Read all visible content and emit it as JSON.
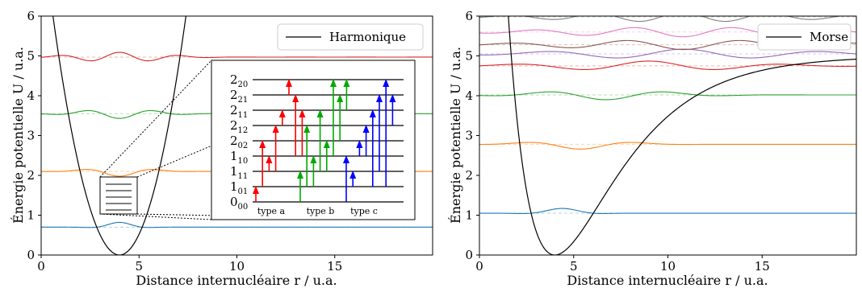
{
  "chart_data": [
    {
      "type": "line",
      "title": "",
      "xlabel": "Distance internucléaire r / u.a.",
      "ylabel": "Énergie potentielle U / u.a.",
      "xlim": [
        0,
        20
      ],
      "ylim": [
        0,
        6
      ],
      "xticks": [
        0,
        5,
        10,
        15
      ],
      "yticks": [
        0,
        1,
        2,
        3,
        4,
        5,
        6
      ],
      "grid": false,
      "legend_position": "top-right",
      "potential": {
        "name": "Harmonique",
        "kind": "harmonic",
        "r0": 4,
        "k": 0.52,
        "color": "#000000"
      },
      "levels": [
        {
          "energy": 0.7,
          "color": "#1f77b4",
          "nodes": 0
        },
        {
          "energy": 2.1,
          "color": "#ff7f0e",
          "nodes": 1
        },
        {
          "energy": 3.55,
          "color": "#2ca02c",
          "nodes": 2
        },
        {
          "energy": 4.97,
          "color": "#d62728",
          "nodes": 3
        }
      ],
      "inset": {
        "levels": [
          "2_20",
          "2_21",
          "2_11",
          "2_12",
          "2_02",
          "1_10",
          "1_11",
          "1_01",
          "0_00"
        ],
        "columns": [
          "type a",
          "type b",
          "type c"
        ],
        "column_colors": [
          "#ff0000",
          "#00aa00",
          "#0000ff"
        ],
        "transitions": [
          {
            "type": "a",
            "from": "1_01",
            "to": "0_00"
          },
          {
            "type": "a",
            "from": "2_02",
            "to": "1_01"
          },
          {
            "type": "a",
            "from": "1_10",
            "to": "1_11"
          },
          {
            "type": "a",
            "from": "2_12",
            "to": "1_11"
          },
          {
            "type": "a",
            "from": "2_11",
            "to": "2_12"
          },
          {
            "type": "a",
            "from": "2_20",
            "to": "2_21"
          },
          {
            "type": "a",
            "from": "2_21",
            "to": "1_10"
          },
          {
            "type": "a",
            "from": "2_11",
            "to": "1_10"
          },
          {
            "type": "b",
            "from": "1_11",
            "to": "0_00"
          },
          {
            "type": "b",
            "from": "2_12",
            "to": "1_01"
          },
          {
            "type": "b",
            "from": "1_10",
            "to": "1_01"
          },
          {
            "type": "b",
            "from": "2_11",
            "to": "1_11"
          },
          {
            "type": "b",
            "from": "2_02",
            "to": "1_11"
          },
          {
            "type": "b",
            "from": "2_20",
            "to": "1_10"
          },
          {
            "type": "b",
            "from": "2_21",
            "to": "2_02"
          },
          {
            "type": "b",
            "from": "2_20",
            "to": "2_11"
          },
          {
            "type": "c",
            "from": "1_10",
            "to": "0_00"
          },
          {
            "type": "c",
            "from": "1_11",
            "to": "1_01"
          },
          {
            "type": "c",
            "from": "2_02",
            "to": "1_10"
          },
          {
            "type": "c",
            "from": "2_12",
            "to": "1_10"
          },
          {
            "type": "c",
            "from": "2_11",
            "to": "1_01"
          },
          {
            "type": "c",
            "from": "2_21",
            "to": "1_11"
          },
          {
            "type": "c",
            "from": "2_20",
            "to": "1_01"
          },
          {
            "type": "c",
            "from": "2_21",
            "to": "2_12"
          }
        ]
      }
    },
    {
      "type": "line",
      "title": "",
      "xlabel": "Distance internucléaire r / u.a.",
      "ylabel": "Énergie potentielle U / u.a.",
      "xlim": [
        0,
        20
      ],
      "ylim": [
        0,
        6
      ],
      "xticks": [
        0,
        5,
        10,
        15
      ],
      "yticks": [
        0,
        1,
        2,
        3,
        4,
        5,
        6
      ],
      "grid": false,
      "legend_position": "top-right",
      "potential": {
        "name": "Morse",
        "kind": "morse",
        "r0": 4,
        "D": 5,
        "a": 0.3,
        "color": "#000000"
      },
      "levels": [
        {
          "energy": 1.05,
          "color": "#1f77b4",
          "nodes": 0
        },
        {
          "energy": 2.78,
          "color": "#ff7f0e",
          "nodes": 1
        },
        {
          "energy": 4.02,
          "color": "#2ca02c",
          "nodes": 2
        },
        {
          "energy": 4.75,
          "color": "#d62728",
          "nodes": 3
        },
        {
          "energy": 5.05,
          "color": "#9467bd",
          "nodes": 4
        },
        {
          "energy": 5.28,
          "color": "#8c564b",
          "nodes": 5
        },
        {
          "energy": 5.6,
          "color": "#e377c2",
          "nodes": 6
        },
        {
          "energy": 5.98,
          "color": "#7f7f7f",
          "nodes": 7
        }
      ]
    }
  ]
}
